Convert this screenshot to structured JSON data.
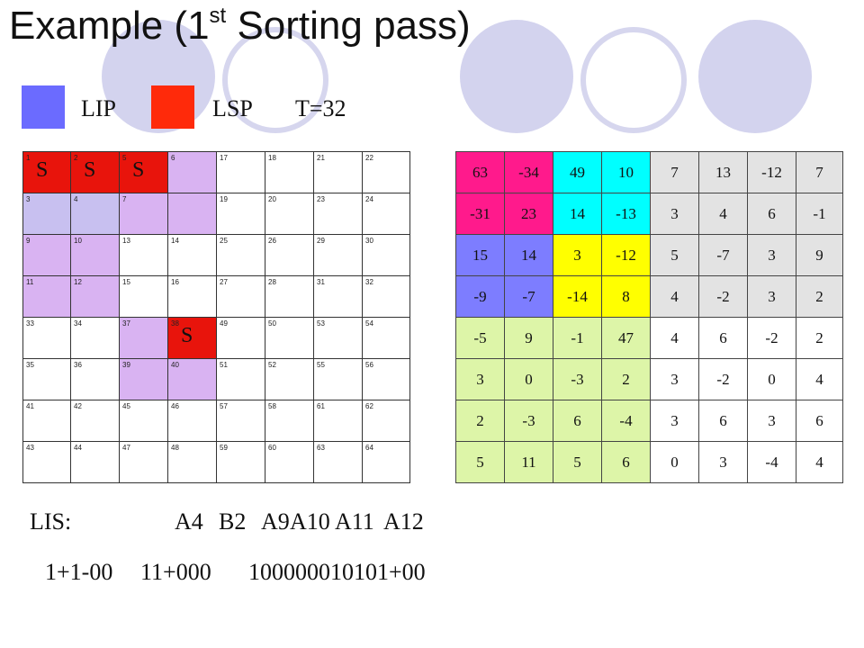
{
  "title": {
    "main": "Example (1",
    "sup": "st",
    "rest": " Sorting pass)"
  },
  "legend": {
    "lip_label": "LIP",
    "lsp_label": "LSP",
    "threshold": "T=32",
    "lip_color": "#6b6bff",
    "lsp_color": "#ff2a0a"
  },
  "left_grid": {
    "numbers": [
      [
        "1",
        "2",
        "5",
        "6",
        "17",
        "18",
        "21",
        "22"
      ],
      [
        "3",
        "4",
        "7",
        "",
        "19",
        "20",
        "23",
        "24"
      ],
      [
        "9",
        "10",
        "13",
        "14",
        "25",
        "26",
        "29",
        "30"
      ],
      [
        "11",
        "12",
        "15",
        "16",
        "27",
        "28",
        "31",
        "32"
      ],
      [
        "33",
        "34",
        "37",
        "38",
        "49",
        "50",
        "53",
        "54"
      ],
      [
        "35",
        "36",
        "39",
        "40",
        "51",
        "52",
        "55",
        "56"
      ],
      [
        "41",
        "42",
        "45",
        "46",
        "57",
        "58",
        "61",
        "62"
      ],
      [
        "43",
        "44",
        "47",
        "48",
        "59",
        "60",
        "63",
        "64"
      ]
    ],
    "fills": [
      [
        "lsp",
        "lsp",
        "lsp",
        "lip",
        "",
        "",
        "",
        ""
      ],
      [
        "lip-dark",
        "lip-dark",
        "lip",
        "lip",
        "",
        "",
        "",
        ""
      ],
      [
        "lip",
        "lip",
        "",
        "",
        "",
        "",
        "",
        ""
      ],
      [
        "lip",
        "lip",
        "",
        "",
        "",
        "",
        "",
        ""
      ],
      [
        "",
        "",
        "lip",
        "lsp",
        "",
        "",
        "",
        ""
      ],
      [
        "",
        "",
        "lip",
        "lip",
        "",
        "",
        "",
        ""
      ],
      [
        "",
        "",
        "",
        "",
        "",
        "",
        "",
        ""
      ],
      [
        "",
        "",
        "",
        "",
        "",
        "",
        "",
        ""
      ]
    ],
    "s_flags": [
      {
        "row": 0,
        "col": 0,
        "text": "S"
      },
      {
        "row": 0,
        "col": 1,
        "text": "S"
      },
      {
        "row": 0,
        "col": 2,
        "text": "S"
      },
      {
        "row": 4,
        "col": 3,
        "text": "S"
      }
    ]
  },
  "right_grid": {
    "values": [
      [
        "63",
        "-34",
        "49",
        "10",
        "7",
        "13",
        "-12",
        "7"
      ],
      [
        "-31",
        "23",
        "14",
        "-13",
        "3",
        "4",
        "6",
        "-1"
      ],
      [
        "15",
        "14",
        "3",
        "-12",
        "5",
        "-7",
        "3",
        "9"
      ],
      [
        "-9",
        "-7",
        "-14",
        "8",
        "4",
        "-2",
        "3",
        "2"
      ],
      [
        "-5",
        "9",
        "-1",
        "47",
        "4",
        "6",
        "-2",
        "2"
      ],
      [
        "3",
        "0",
        "-3",
        "2",
        "3",
        "-2",
        "0",
        "4"
      ],
      [
        "2",
        "-3",
        "6",
        "-4",
        "3",
        "6",
        "3",
        "6"
      ],
      [
        "5",
        "11",
        "5",
        "6",
        "0",
        "3",
        "-4",
        "4"
      ]
    ],
    "colors": [
      [
        "#ff1a8c",
        "#ff1a8c",
        "#00ffff",
        "#00ffff",
        "#e3e3e3",
        "#e3e3e3",
        "#e3e3e3",
        "#e3e3e3"
      ],
      [
        "#ff1a8c",
        "#ff1a8c",
        "#00ffff",
        "#00ffff",
        "#e3e3e3",
        "#e3e3e3",
        "#e3e3e3",
        "#e3e3e3"
      ],
      [
        "#7d7dff",
        "#7d7dff",
        "#ffff00",
        "#ffff00",
        "#e3e3e3",
        "#e3e3e3",
        "#e3e3e3",
        "#e3e3e3"
      ],
      [
        "#7d7dff",
        "#7d7dff",
        "#ffff00",
        "#ffff00",
        "#e3e3e3",
        "#e3e3e3",
        "#e3e3e3",
        "#e3e3e3"
      ],
      [
        "#ddf5a8",
        "#ddf5a8",
        "#ddf5a8",
        "#ddf5a8",
        "#ffffff",
        "#ffffff",
        "#ffffff",
        "#ffffff"
      ],
      [
        "#ddf5a8",
        "#ddf5a8",
        "#ddf5a8",
        "#ddf5a8",
        "#ffffff",
        "#ffffff",
        "#ffffff",
        "#ffffff"
      ],
      [
        "#ddf5a8",
        "#ddf5a8",
        "#ddf5a8",
        "#ddf5a8",
        "#ffffff",
        "#ffffff",
        "#ffffff",
        "#ffffff"
      ],
      [
        "#ddf5a8",
        "#ddf5a8",
        "#ddf5a8",
        "#ddf5a8",
        "#ffffff",
        "#ffffff",
        "#ffffff",
        "#ffffff"
      ]
    ]
  },
  "lis": {
    "label": "LIS:",
    "items": [
      "A4",
      "B2",
      "A9",
      "A10",
      "A11",
      "A12"
    ]
  },
  "bits": {
    "g1": "1+1-00",
    "g2": "11+000",
    "g3": "100000010101+00"
  }
}
